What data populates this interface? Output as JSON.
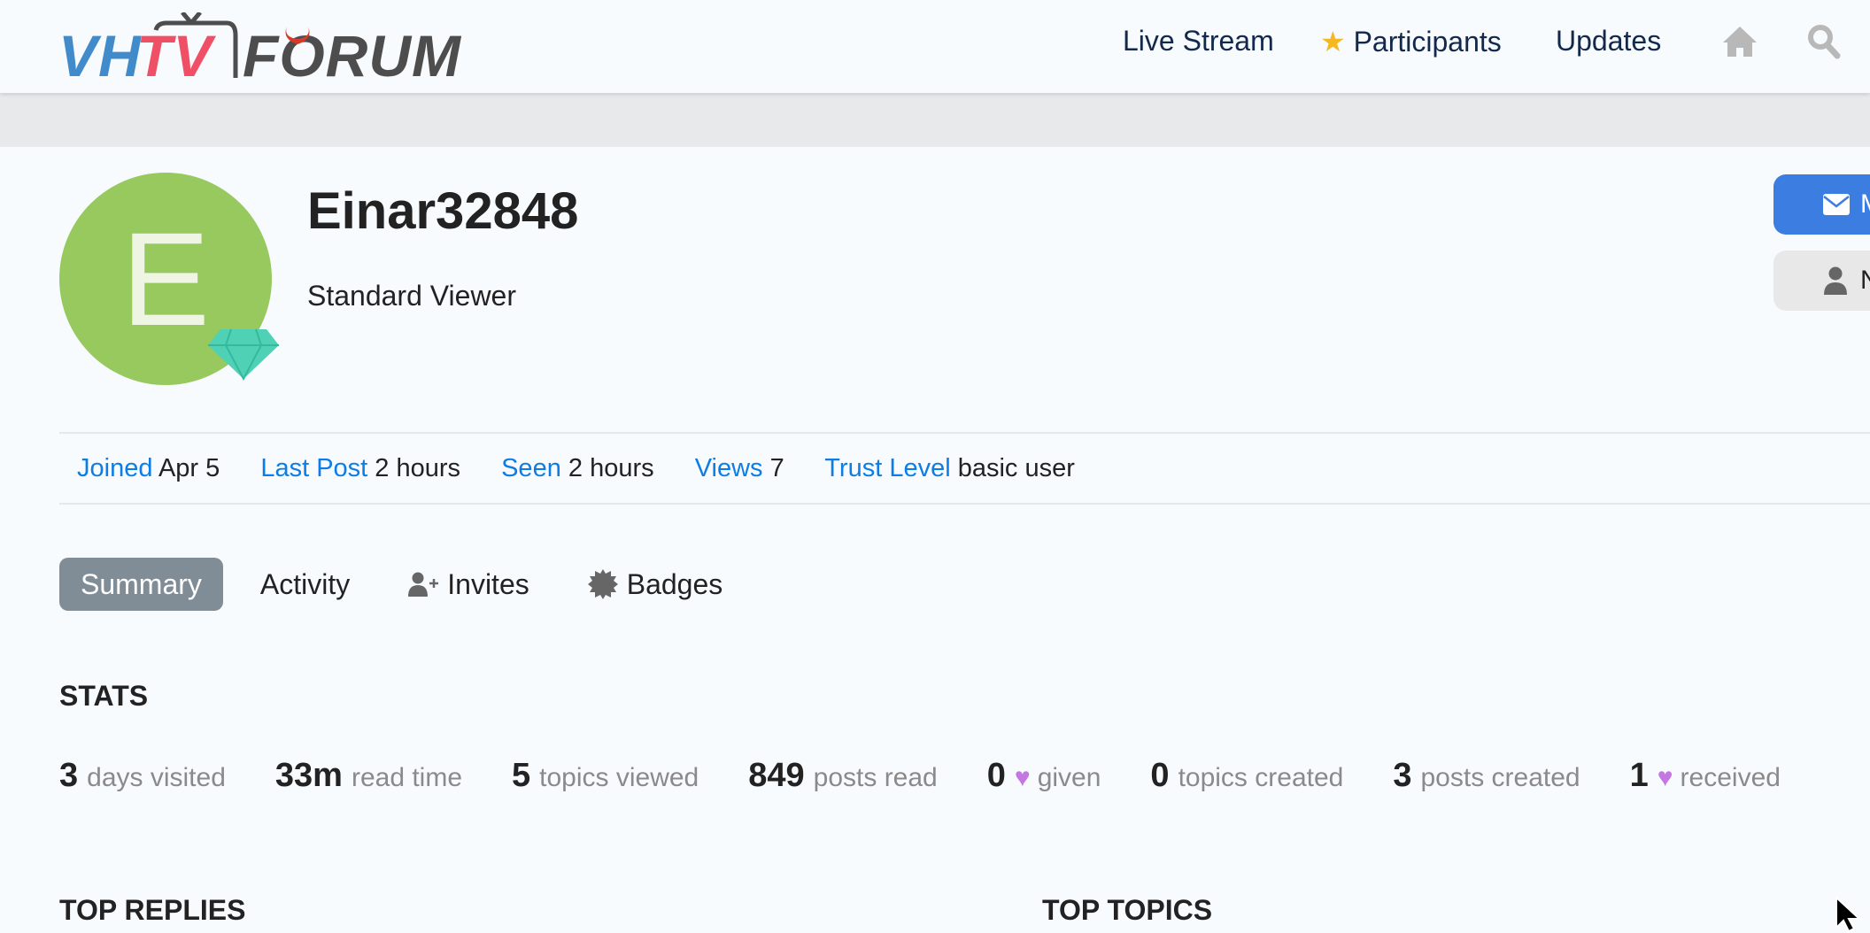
{
  "header": {
    "logo_text": "VHTV FORUM",
    "logo_colors": {
      "VH": "#428bca",
      "TV": "#ef5065",
      "FORUM": "#4d4d4d",
      "horns": "#d63a2a"
    },
    "nav": [
      {
        "label": "Live Stream"
      },
      {
        "label": "Participants",
        "icon": "star-icon"
      },
      {
        "label": "Updates"
      }
    ],
    "icons": [
      "home-icon",
      "search-icon"
    ]
  },
  "profile": {
    "avatar_letter": "E",
    "avatar_color": "#97c95e",
    "badge_icon": "diamond-icon",
    "username": "Einar32848",
    "user_title": "Standard Viewer",
    "buttons": [
      {
        "label": "M",
        "icon": "envelope-icon",
        "color": "#3b7de0"
      },
      {
        "label": "N",
        "icon": "user-icon"
      }
    ]
  },
  "info": [
    {
      "key": "Joined",
      "value": "Apr 5"
    },
    {
      "key": "Last Post",
      "value": "2 hours"
    },
    {
      "key": "Seen",
      "value": "2 hours"
    },
    {
      "key": "Views",
      "value": "7"
    },
    {
      "key": "Trust Level",
      "value": "basic user"
    }
  ],
  "tabs": [
    {
      "label": "Summary",
      "active": true
    },
    {
      "label": "Activity"
    },
    {
      "label": "Invites",
      "icon": "user-plus-icon"
    },
    {
      "label": "Badges",
      "icon": "badge-icon"
    }
  ],
  "stats_heading": "STATS",
  "stats": [
    {
      "num": "3",
      "label": "days visited"
    },
    {
      "num": "33m",
      "label": "read time"
    },
    {
      "num": "5",
      "label": "topics viewed"
    },
    {
      "num": "849",
      "label": "posts read"
    },
    {
      "num": "0",
      "label": "given",
      "heart": true
    },
    {
      "num": "0",
      "label": "topics created"
    },
    {
      "num": "3",
      "label": "posts created"
    },
    {
      "num": "1",
      "label": "received",
      "heart": true
    }
  ],
  "sections": {
    "top_replies": "TOP REPLIES",
    "top_topics": "TOP TOPICS"
  }
}
